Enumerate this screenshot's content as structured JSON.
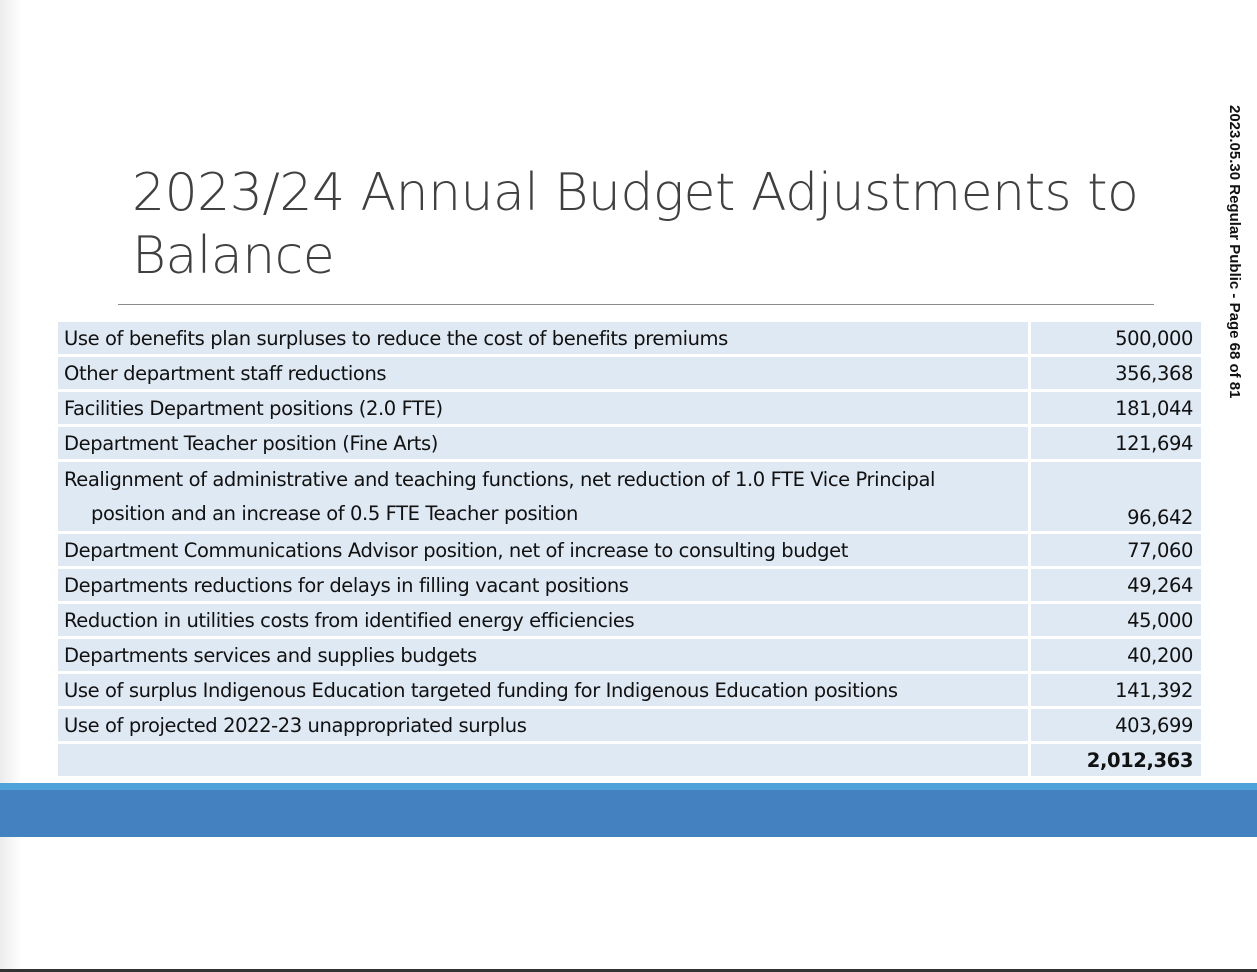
{
  "slide": {
    "title": "2023/24 Annual Budget Adjustments to Balance",
    "side_label": "2023.05.30  Regular Public - Page 68 of 81",
    "colors": {
      "cell": "#dfe9f4",
      "band": "#4481c0",
      "stripe": "#4fa3da"
    }
  },
  "table": {
    "rows": [
      {
        "description": "Use of benefits plan surpluses to reduce the cost of benefits premiums",
        "amount": "500,000"
      },
      {
        "description": "Other department staff reductions",
        "amount": "356,368"
      },
      {
        "description": "Facilities Department positions (2.0 FTE)",
        "amount": "181,044"
      },
      {
        "description": "Department Teacher position (Fine Arts)",
        "amount": "121,694"
      },
      {
        "description": "Realignment of administrative and teaching functions, net reduction of 1.0 FTE Vice Principal",
        "description_cont": "position and an increase of 0.5 FTE Teacher position",
        "amount": "96,642"
      },
      {
        "description": "Department Communications Advisor position, net of increase to consulting budget",
        "amount": "77,060"
      },
      {
        "description": "Departments reductions for delays in filling vacant positions",
        "amount": "49,264"
      },
      {
        "description": "Reduction in utilities costs from identified energy efficiencies",
        "amount": "45,000"
      },
      {
        "description": "Departments services and supplies budgets",
        "amount": "40,200"
      },
      {
        "description": "Use of surplus Indigenous Education targeted funding for Indigenous Education positions",
        "amount": "141,392"
      },
      {
        "description": "Use of projected 2022-23 unappropriated surplus",
        "amount": "403,699"
      }
    ],
    "total": "2,012,363"
  }
}
